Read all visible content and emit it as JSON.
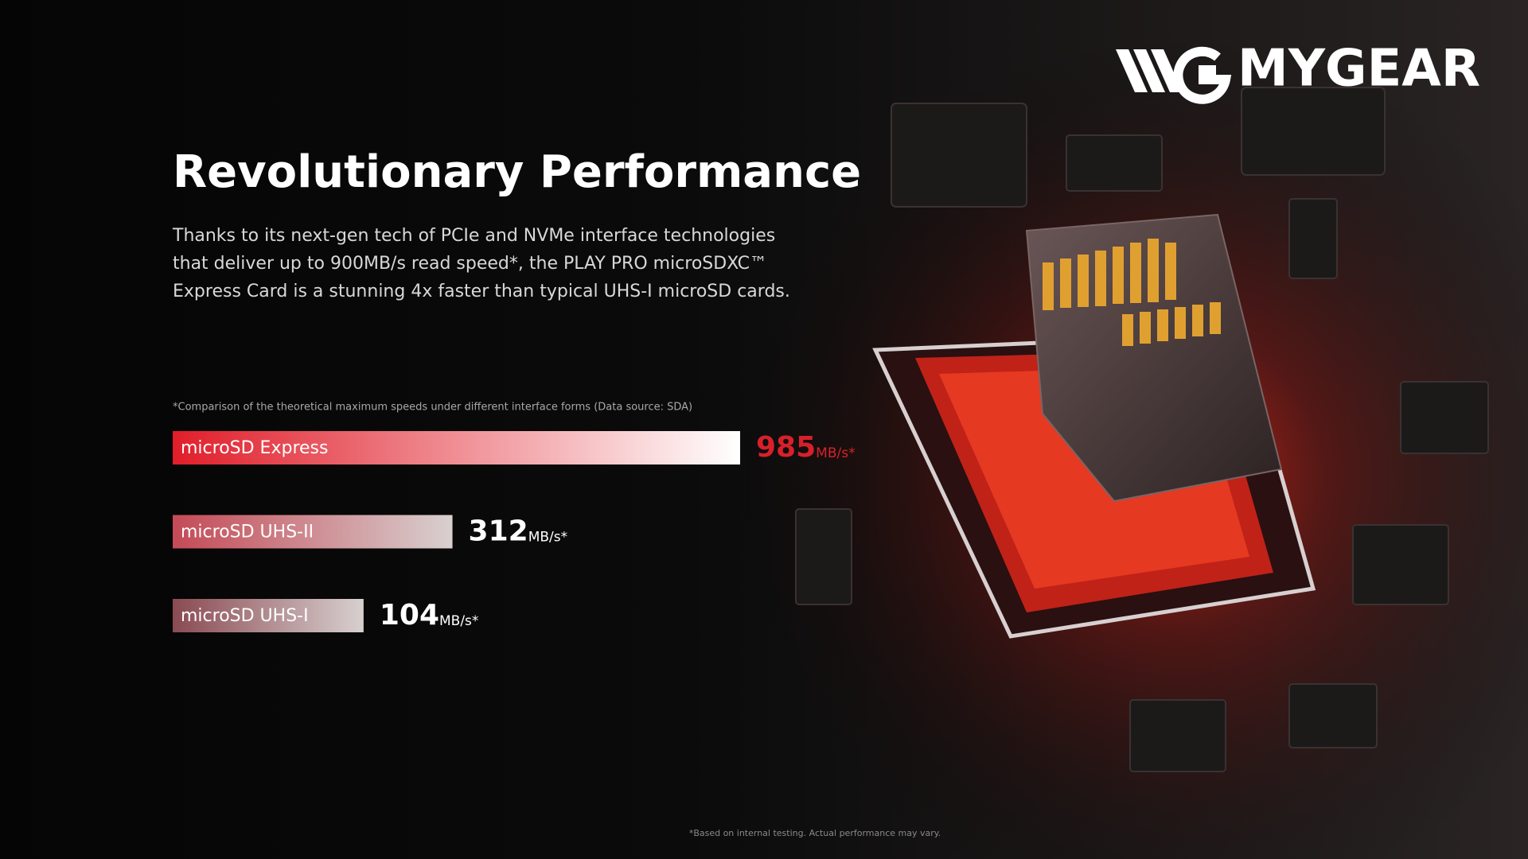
{
  "brand": "MYGEAR",
  "heading": "Revolutionary Performance",
  "body": [
    "Thanks to its next-gen tech of PCIe and NVMe interface technologies",
    "that deliver up to 900MB/s read speed*, the PLAY PRO microSDXC™",
    "Express Card is a stunning 4x faster than typical UHS-I microSD cards."
  ],
  "chart_data": {
    "type": "bar",
    "note": "*Comparison of the theoretical maximum speeds under different interface forms (Data source: SDA)",
    "categories": [
      "microSD Express",
      "microSD UHS-II",
      "microSD UHS-I"
    ],
    "values": [
      985,
      312,
      104
    ],
    "value_unit": "MB/s*",
    "colors": [
      "#e01e2a",
      "#c44a56",
      "#8a4a52"
    ]
  },
  "footnote": "*Based on internal testing. Actual performance may vary."
}
